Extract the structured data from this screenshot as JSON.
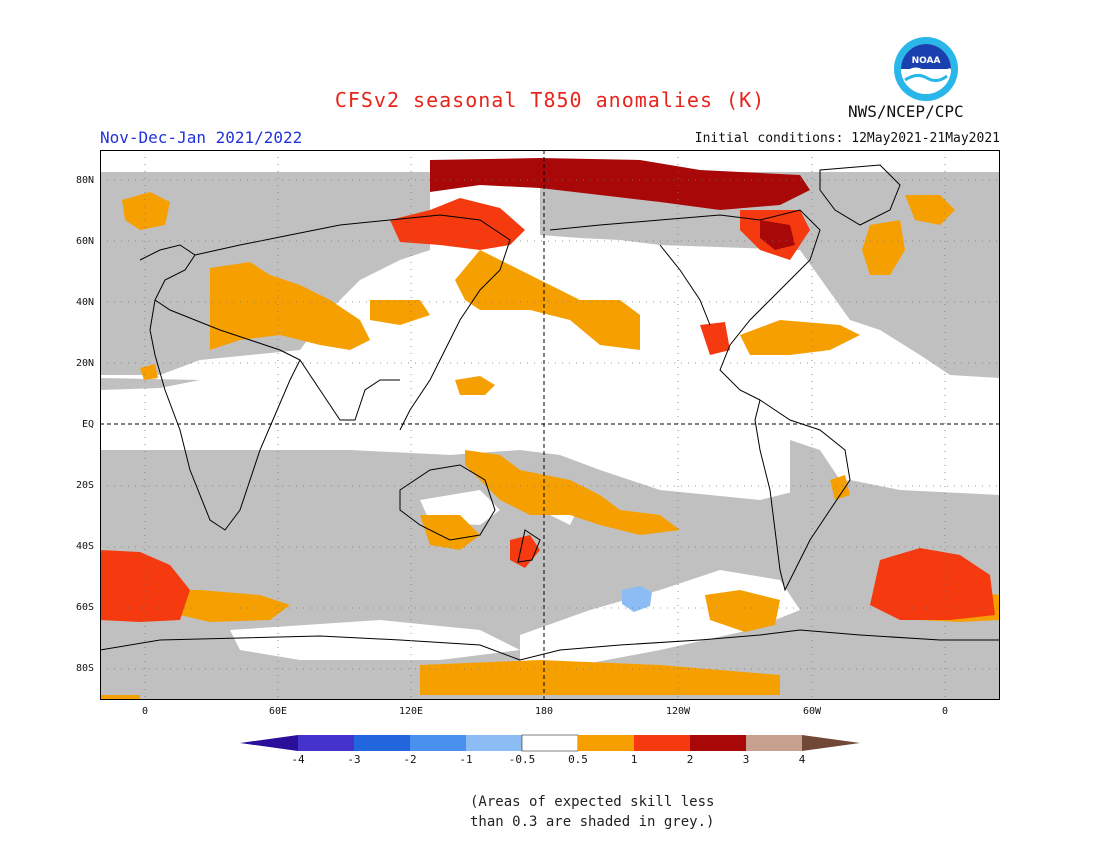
{
  "header": {
    "title": "CFSv2 seasonal T850 anomalies (K)",
    "period": "Nov-Dec-Jan 2021/2022",
    "initial_conditions": "Initial conditions: 12May2021-21May2021",
    "agency": "NWS/NCEP/CPC",
    "logo_text": "NOAA"
  },
  "axes": {
    "lat_labels": [
      "80N",
      "60N",
      "40N",
      "20N",
      "EQ",
      "20S",
      "40S",
      "60S",
      "80S"
    ],
    "lat_values": [
      80,
      60,
      40,
      20,
      0,
      -20,
      -40,
      -60,
      -80
    ],
    "lon_labels": [
      "0",
      "60E",
      "120E",
      "180",
      "120W",
      "60W",
      "0"
    ],
    "lon_values": [
      0,
      60,
      120,
      180,
      240,
      300,
      360
    ]
  },
  "legend": {
    "labels": [
      "-4",
      "-3",
      "-2",
      "-1",
      "-0.5",
      "0.5",
      "1",
      "2",
      "3",
      "4"
    ],
    "colors": [
      "#2a0f9a",
      "#4433cc",
      "#2266dd",
      "#4a90ee",
      "#8cbcf4",
      "#ffffff",
      "#f5a000",
      "#f53a10",
      "#a80808",
      "#c8a090",
      "#704838"
    ],
    "note_line1": "(Areas of expected skill less",
    "note_line2": "than 0.3 are shaded in grey.)"
  },
  "colors": {
    "skill_grey": "#c0c0c0",
    "coast": "#000000"
  }
}
